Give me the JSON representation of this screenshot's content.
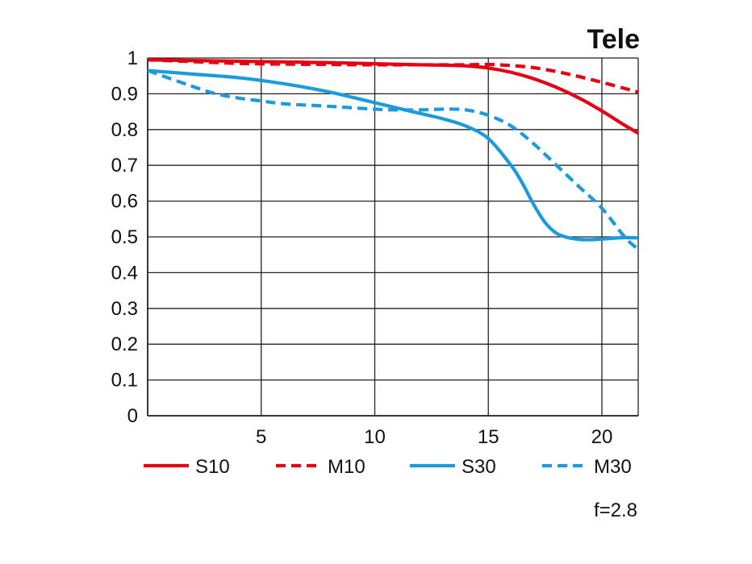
{
  "chart_data": {
    "type": "line",
    "title": "Tele",
    "note": "f=2.8",
    "xlabel": "",
    "ylabel": "",
    "xlim": [
      0,
      21.6
    ],
    "ylim": [
      0,
      1
    ],
    "x_ticks": [
      "5",
      "10",
      "15",
      "20"
    ],
    "y_ticks": [
      "0",
      "0.1",
      "0.2",
      "0.3",
      "0.4",
      "0.5",
      "0.6",
      "0.7",
      "0.8",
      "0.9",
      "1"
    ],
    "grid": true,
    "legend_position": "bottom",
    "series": [
      {
        "name": "S10",
        "color": "#e60012",
        "dash": false,
        "points": [
          [
            0,
            0.995
          ],
          [
            2,
            0.993
          ],
          [
            4,
            0.991
          ],
          [
            6,
            0.989
          ],
          [
            8,
            0.987
          ],
          [
            10,
            0.984
          ],
          [
            12,
            0.981
          ],
          [
            13,
            0.98
          ],
          [
            14,
            0.978
          ],
          [
            15,
            0.972
          ],
          [
            16,
            0.96
          ],
          [
            17,
            0.942
          ],
          [
            18,
            0.918
          ],
          [
            19,
            0.888
          ],
          [
            20,
            0.852
          ],
          [
            21,
            0.812
          ],
          [
            21.6,
            0.79
          ]
        ]
      },
      {
        "name": "M10",
        "color": "#e60012",
        "dash": true,
        "points": [
          [
            0,
            0.995
          ],
          [
            2,
            0.99
          ],
          [
            4,
            0.985
          ],
          [
            6,
            0.983
          ],
          [
            8,
            0.982
          ],
          [
            10,
            0.981
          ],
          [
            12,
            0.981
          ],
          [
            14,
            0.981
          ],
          [
            15,
            0.982
          ],
          [
            16,
            0.979
          ],
          [
            17,
            0.973
          ],
          [
            18,
            0.962
          ],
          [
            19,
            0.948
          ],
          [
            20,
            0.932
          ],
          [
            21,
            0.915
          ],
          [
            21.6,
            0.905
          ]
        ]
      },
      {
        "name": "S30",
        "color": "#1a9be0",
        "dash": false,
        "points": [
          [
            0,
            0.965
          ],
          [
            2,
            0.955
          ],
          [
            4,
            0.945
          ],
          [
            6,
            0.928
          ],
          [
            8,
            0.905
          ],
          [
            10,
            0.875
          ],
          [
            12,
            0.845
          ],
          [
            13,
            0.83
          ],
          [
            14,
            0.81
          ],
          [
            15,
            0.775
          ],
          [
            16,
            0.7
          ],
          [
            16.5,
            0.65
          ],
          [
            17,
            0.59
          ],
          [
            17.5,
            0.54
          ],
          [
            18,
            0.51
          ],
          [
            18.5,
            0.498
          ],
          [
            19,
            0.493
          ],
          [
            19.5,
            0.492
          ],
          [
            20,
            0.494
          ],
          [
            21,
            0.498
          ],
          [
            21.6,
            0.497
          ]
        ]
      },
      {
        "name": "M30",
        "color": "#1a9be0",
        "dash": true,
        "points": [
          [
            0,
            0.965
          ],
          [
            2,
            0.92
          ],
          [
            3,
            0.9
          ],
          [
            4,
            0.888
          ],
          [
            5,
            0.88
          ],
          [
            6,
            0.872
          ],
          [
            8,
            0.865
          ],
          [
            10,
            0.857
          ],
          [
            11,
            0.855
          ],
          [
            12,
            0.855
          ],
          [
            13,
            0.857
          ],
          [
            14,
            0.855
          ],
          [
            15,
            0.84
          ],
          [
            16,
            0.81
          ],
          [
            17,
            0.76
          ],
          [
            18,
            0.7
          ],
          [
            19,
            0.64
          ],
          [
            20,
            0.58
          ],
          [
            21,
            0.5
          ],
          [
            21.6,
            0.465
          ]
        ]
      }
    ]
  }
}
